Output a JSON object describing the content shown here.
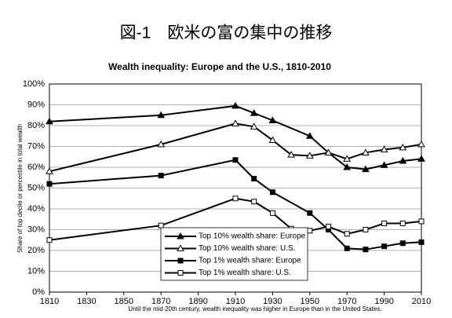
{
  "chart_data": {
    "type": "line",
    "title": "図-1　欧米の富の集中の推移",
    "subtitle": "Wealth inequality:  Europe and the U.S., 1810-2010",
    "y_label": "Share of top decile or percentile in total wealth",
    "note": "Until the mid 20th century, wealth inequality was higher in Europe than in the United States.",
    "xlim": [
      1810,
      2010
    ],
    "xticks": [
      1810,
      1830,
      1850,
      1870,
      1890,
      1910,
      1930,
      1950,
      1970,
      1990,
      2010
    ],
    "ylim": [
      0,
      100
    ],
    "yticks": [
      {
        "value": 0,
        "label": "0%"
      },
      {
        "value": 10,
        "label": "10%"
      },
      {
        "value": 20,
        "label": "20%"
      },
      {
        "value": 30,
        "label": "30%"
      },
      {
        "value": 40,
        "label": "40%"
      },
      {
        "value": 50,
        "label": "50%"
      },
      {
        "value": 60,
        "label": "60%"
      },
      {
        "value": 70,
        "label": "70%"
      },
      {
        "value": 80,
        "label": "80%"
      },
      {
        "value": 90,
        "label": "90%"
      },
      {
        "value": 100,
        "label": "100%"
      }
    ],
    "grid": true,
    "series": [
      {
        "name": "Top 10% wealth share: Europe",
        "color": "#000000",
        "marker": "triangle",
        "filled": true,
        "x": [
          1810,
          1870,
          1910,
          1920,
          1930,
          1950,
          1960,
          1970,
          1980,
          1990,
          2000,
          2010
        ],
        "values": [
          82,
          85,
          89.5,
          86,
          82.5,
          75,
          67,
          60,
          59,
          61,
          63,
          64
        ]
      },
      {
        "name": "Top 10% wealth share: U.S.",
        "color": "#000000",
        "marker": "triangle",
        "filled": false,
        "x": [
          1810,
          1870,
          1910,
          1920,
          1930,
          1940,
          1950,
          1960,
          1970,
          1980,
          1990,
          2000,
          2010
        ],
        "values": [
          58,
          71,
          81,
          79.5,
          73,
          66,
          65.5,
          67,
          64,
          67,
          68.5,
          69.5,
          71
        ]
      },
      {
        "name": "Top 1% wealth share: Europe",
        "color": "#000000",
        "marker": "square",
        "filled": true,
        "x": [
          1810,
          1870,
          1910,
          1920,
          1930,
          1950,
          1960,
          1970,
          1980,
          1990,
          2000,
          2010
        ],
        "values": [
          52,
          56,
          63.5,
          54.5,
          48,
          38,
          30,
          21,
          20.5,
          22,
          23.5,
          24
        ]
      },
      {
        "name": "Top 1% wealth share: U.S.",
        "color": "#000000",
        "marker": "square",
        "filled": false,
        "x": [
          1810,
          1870,
          1910,
          1920,
          1930,
          1940,
          1950,
          1960,
          1970,
          1980,
          1990,
          2000,
          2010
        ],
        "values": [
          25,
          32,
          45,
          43.5,
          38,
          30.5,
          29.5,
          31.5,
          28,
          30,
          33,
          33,
          34
        ]
      }
    ]
  }
}
